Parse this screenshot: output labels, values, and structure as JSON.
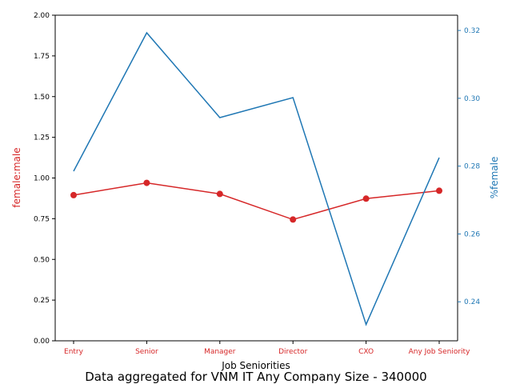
{
  "chart_data": {
    "type": "line",
    "caption": "Data aggregated for VNM IT Any Company Size - 340000",
    "xlabel": "Job Seniorities",
    "ylabel_left": "female:male",
    "ylabel_right": "%female",
    "categories": [
      "Entry",
      "Senior",
      "Manager",
      "Director",
      "CXO",
      "Any Job Seniority"
    ],
    "left_axis": {
      "ylim": [
        0.0,
        2.0
      ],
      "ticks": [
        "0.00",
        "0.25",
        "0.50",
        "0.75",
        "1.00",
        "1.25",
        "1.50",
        "1.75",
        "2.00"
      ],
      "color": "#d62728"
    },
    "right_axis": {
      "ylim": [
        0.2285,
        0.3245
      ],
      "ticks": [
        "0.24",
        "0.26",
        "0.28",
        "0.30",
        "0.32"
      ],
      "color": "#1f77b4"
    },
    "series": [
      {
        "axis": "left",
        "marker": "circle",
        "color": "#d62728",
        "values": [
          0.895,
          0.97,
          0.902,
          0.745,
          0.873,
          0.922
        ]
      },
      {
        "axis": "right",
        "marker": "none",
        "color": "#1f77b4",
        "values": [
          0.2785,
          0.3193,
          0.2943,
          0.3002,
          0.2333,
          0.2825
        ]
      }
    ],
    "grid": false
  }
}
